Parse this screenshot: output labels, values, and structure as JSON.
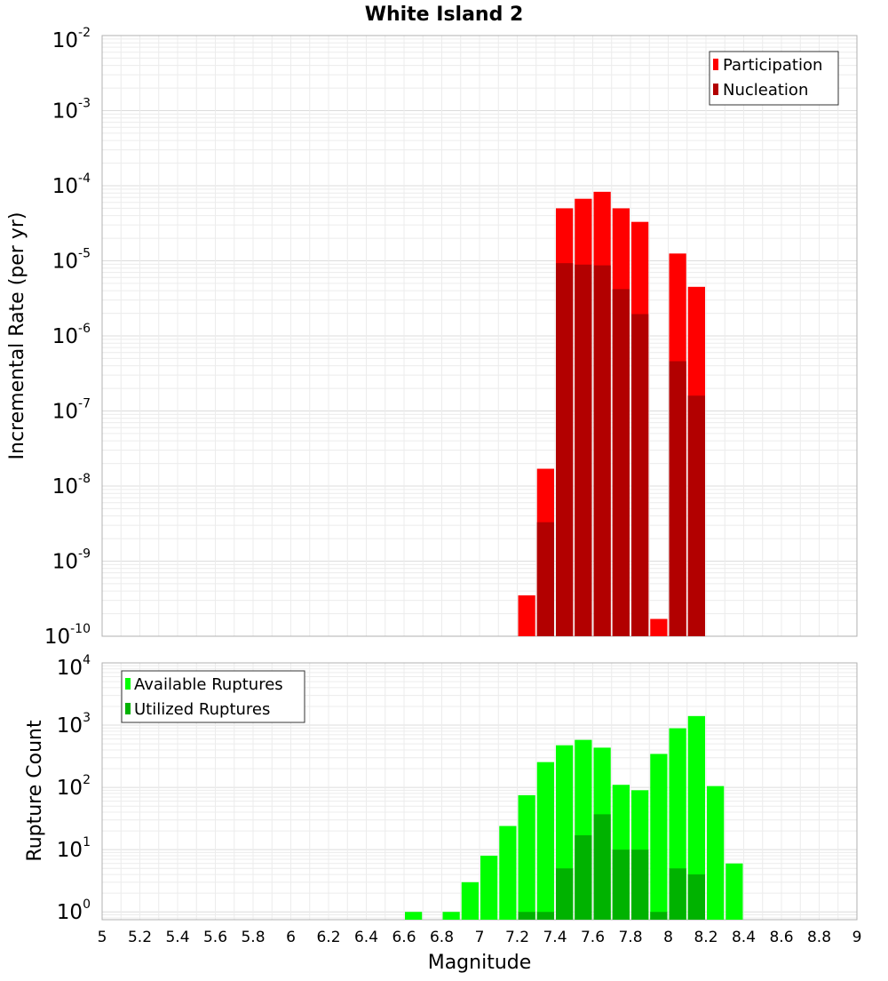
{
  "chart_data": [
    {
      "type": "bar",
      "title": "White Island 2",
      "xlabel": "",
      "ylabel": "Incremental Rate (per yr)",
      "yscale": "log",
      "ylim": [
        1e-10,
        0.01
      ],
      "xlim": [
        5,
        9
      ],
      "bin_width": 0.1,
      "grid": true,
      "legend_position": "top-right",
      "y_tick_exponents": [
        "-10",
        "-9",
        "-8",
        "-7",
        "-6",
        "-5",
        "-4",
        "-3",
        "-2"
      ],
      "series": [
        {
          "name": "Participation",
          "color": "#ff0000",
          "x": [
            7.25,
            7.35,
            7.45,
            7.55,
            7.65,
            7.75,
            7.85,
            7.95,
            8.05,
            8.15
          ],
          "values": [
            3.5e-10,
            1.7e-08,
            5e-05,
            6.7e-05,
            8.3e-05,
            5e-05,
            3.3e-05,
            1.7e-10,
            1.25e-05,
            4.5e-06
          ]
        },
        {
          "name": "Nucleation",
          "color": "#b20000",
          "x": [
            7.35,
            7.45,
            7.55,
            7.65,
            7.75,
            7.85,
            8.05,
            8.15
          ],
          "values": [
            3.3e-09,
            9.3e-06,
            8.9e-06,
            8.7e-06,
            4.2e-06,
            1.95e-06,
            4.6e-07,
            1.6e-07
          ]
        }
      ]
    },
    {
      "type": "bar",
      "title": "",
      "xlabel": "Magnitude",
      "ylabel": "Rupture Count",
      "yscale": "log",
      "ylim": [
        0.75,
        10000
      ],
      "xlim": [
        5,
        9
      ],
      "bin_width": 0.1,
      "grid": true,
      "legend_position": "top-left",
      "x_tick_labels": [
        "5",
        "5.2",
        "5.4",
        "5.6",
        "5.8",
        "6",
        "6.2",
        "6.4",
        "6.6",
        "6.8",
        "7",
        "7.2",
        "7.4",
        "7.6",
        "7.8",
        "8",
        "8.2",
        "8.4",
        "8.6",
        "8.8",
        "9"
      ],
      "y_tick_exponents": [
        "0",
        "1",
        "2",
        "3",
        "4"
      ],
      "series": [
        {
          "name": "Available Ruptures",
          "color": "#00ff00",
          "x": [
            6.65,
            6.85,
            6.95,
            7.05,
            7.15,
            7.25,
            7.35,
            7.45,
            7.55,
            7.65,
            7.75,
            7.85,
            7.95,
            8.05,
            8.15,
            8.25,
            8.35
          ],
          "values": [
            1,
            1,
            3,
            8,
            24,
            75,
            255,
            475,
            580,
            435,
            110,
            90,
            345,
            890,
            1400,
            105,
            6
          ]
        },
        {
          "name": "Utilized Ruptures",
          "color": "#00b200",
          "x": [
            7.25,
            7.35,
            7.45,
            7.55,
            7.65,
            7.75,
            7.85,
            7.95,
            8.05,
            8.15
          ],
          "values": [
            1,
            1,
            5,
            17,
            37,
            10,
            10,
            1,
            5,
            4
          ]
        }
      ]
    }
  ]
}
